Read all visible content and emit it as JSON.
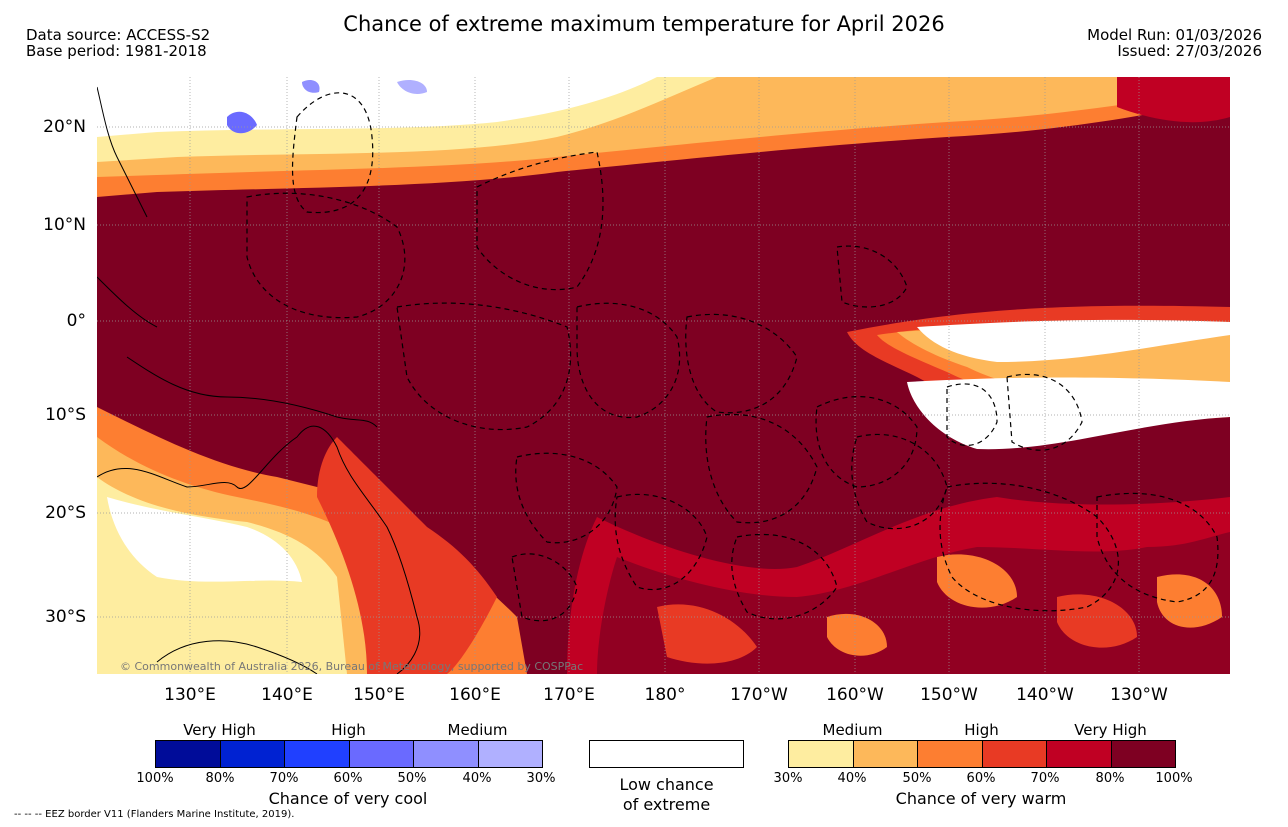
{
  "header": {
    "title": "Chance of extreme maximum temperature for April 2026",
    "data_source": "Data source: ACCESS-S2",
    "base_period": "Base period: 1981-2018",
    "model_run": "Model Run: 01/03/2026",
    "issued": "Issued: 27/03/2026"
  },
  "map": {
    "lat_labels": [
      "20°N",
      "10°N",
      "0°",
      "10°S",
      "20°S",
      "30°S"
    ],
    "lon_labels": [
      "130°E",
      "140°E",
      "150°E",
      "160°E",
      "170°E",
      "180°",
      "170°W",
      "160°W",
      "150°W",
      "140°W",
      "130°W"
    ],
    "copyright": "© Commonwealth of Australia 2026, Bureau of Meteorology, supported by COSPPac"
  },
  "legend": {
    "cool": {
      "category_labels": [
        "Very High",
        "High",
        "Medium"
      ],
      "percent_labels": [
        "100%",
        "80%",
        "70%",
        "60%",
        "50%",
        "40%",
        "30%"
      ],
      "colors": [
        "#000c99",
        "#0022d2",
        "#2040ff",
        "#6a6aff",
        "#8f8fff",
        "#b0b0ff"
      ],
      "title": "Chance of very cool"
    },
    "low": {
      "line1": "Low chance",
      "line2": "of extreme"
    },
    "warm": {
      "category_labels": [
        "Medium",
        "High",
        "Very High"
      ],
      "percent_labels": [
        "30%",
        "40%",
        "50%",
        "60%",
        "70%",
        "80%",
        "100%"
      ],
      "colors": [
        "#feeda0",
        "#fdb85a",
        "#fd7e31",
        "#e83a24",
        "#c00023",
        "#7e0022"
      ],
      "title": "Chance of very warm"
    }
  },
  "footnote": "-- -- -- EEZ border V11 (Flanders Marine Institute, 2019)."
}
